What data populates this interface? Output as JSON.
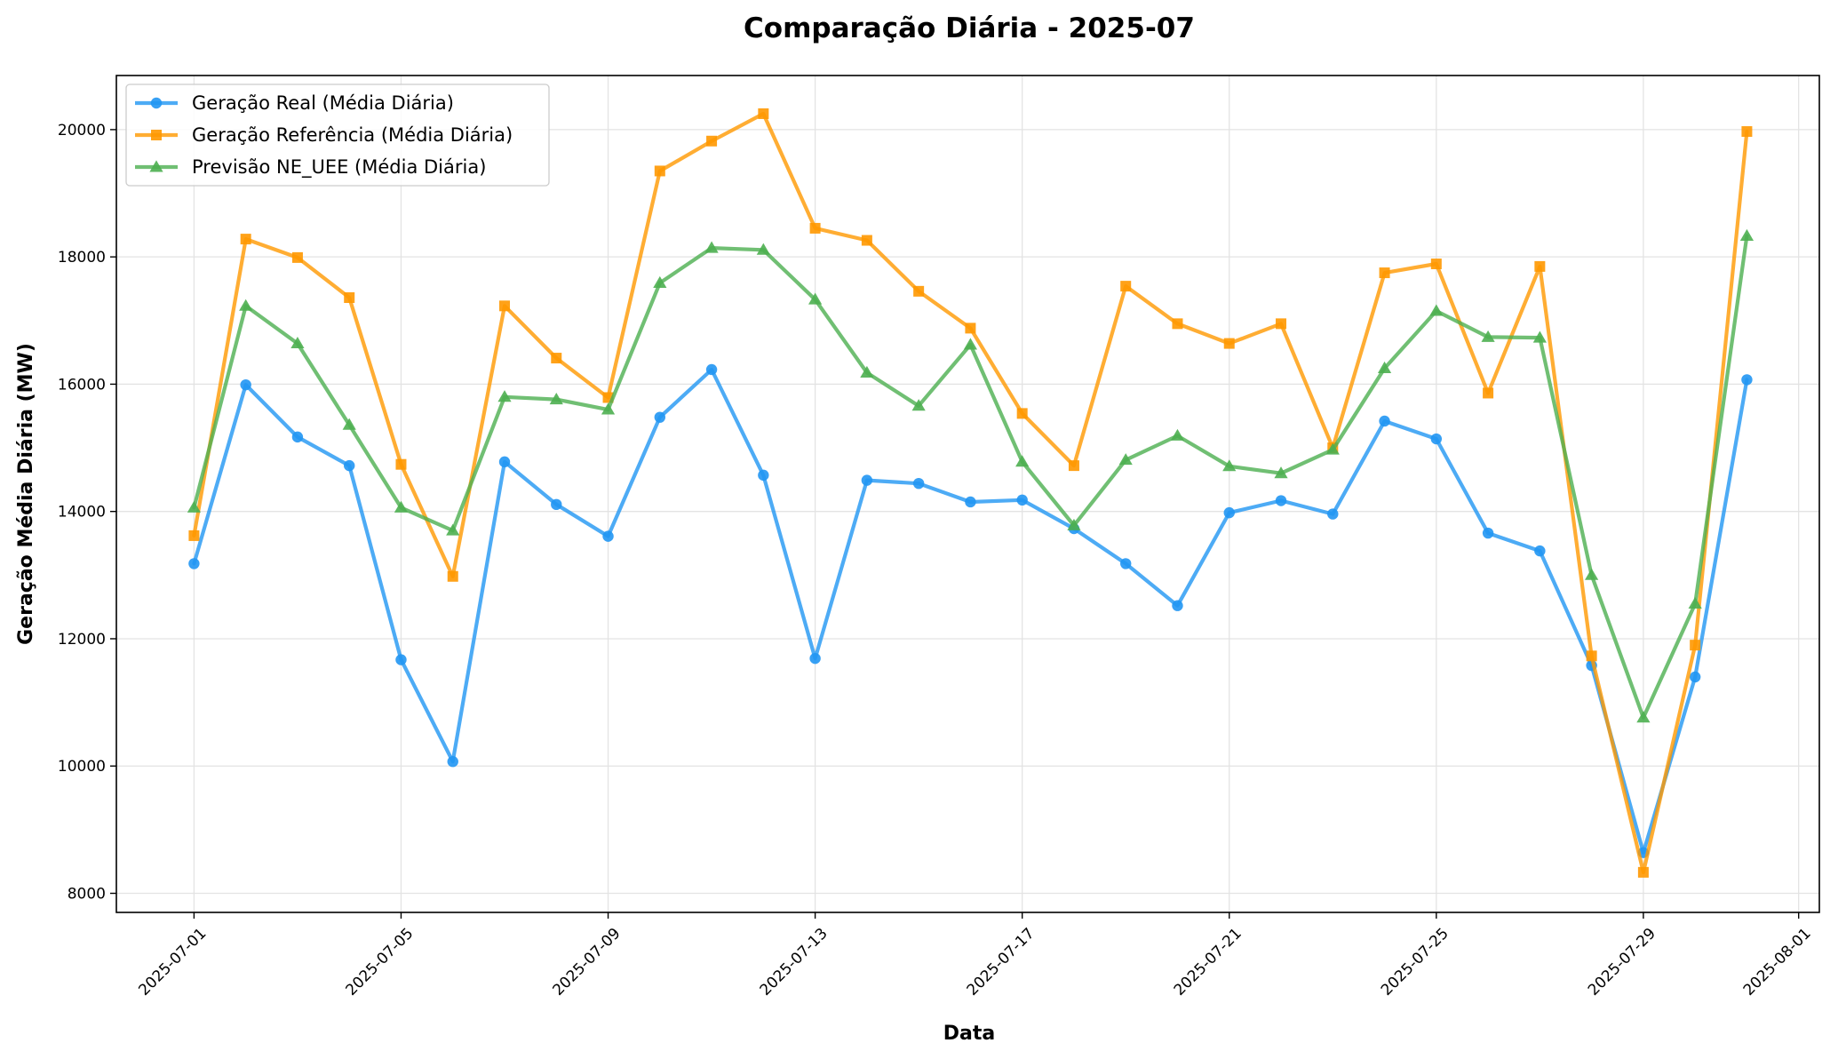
{
  "chart_data": {
    "type": "line",
    "title": "Comparação Diária - 2025-07",
    "xlabel": "Data",
    "ylabel": "Geração Média Diária (MW)",
    "xlim": [
      "2025-06-29.5",
      "2025-08-01.4"
    ],
    "ylim": [
      7700,
      20850
    ],
    "x_ticks": [
      "2025-07-01",
      "2025-07-05",
      "2025-07-09",
      "2025-07-13",
      "2025-07-17",
      "2025-07-21",
      "2025-07-25",
      "2025-07-29",
      "2025-08-01"
    ],
    "y_ticks": [
      8000,
      10000,
      12000,
      14000,
      16000,
      18000,
      20000
    ],
    "grid": true,
    "legend_position": "upper-left",
    "x": [
      "2025-07-01",
      "2025-07-02",
      "2025-07-03",
      "2025-07-04",
      "2025-07-05",
      "2025-07-06",
      "2025-07-07",
      "2025-07-08",
      "2025-07-09",
      "2025-07-10",
      "2025-07-11",
      "2025-07-12",
      "2025-07-13",
      "2025-07-14",
      "2025-07-15",
      "2025-07-16",
      "2025-07-17",
      "2025-07-18",
      "2025-07-19",
      "2025-07-20",
      "2025-07-21",
      "2025-07-22",
      "2025-07-23",
      "2025-07-24",
      "2025-07-25",
      "2025-07-26",
      "2025-07-27",
      "2025-07-28",
      "2025-07-29",
      "2025-07-30",
      "2025-07-31"
    ],
    "series": [
      {
        "name": "Geração Real (Média Diária)",
        "color": "#2196F3",
        "marker": "circle",
        "values": [
          13180,
          15990,
          15170,
          14720,
          11670,
          10070,
          14780,
          14110,
          13610,
          15480,
          16230,
          14570,
          11690,
          14490,
          14440,
          14150,
          14180,
          13730,
          13180,
          12520,
          13980,
          14170,
          13960,
          15420,
          15140,
          13660,
          13380,
          11580,
          8640,
          11400,
          16070
        ]
      },
      {
        "name": "Geração Referência (Média Diária)",
        "color": "#FF9800",
        "marker": "square",
        "values": [
          13620,
          18280,
          17990,
          17360,
          14740,
          12980,
          17230,
          16410,
          15790,
          19350,
          19820,
          20250,
          18450,
          18260,
          17460,
          16880,
          15540,
          14720,
          17540,
          16950,
          16640,
          16950,
          15000,
          17750,
          17890,
          15860,
          17850,
          11730,
          8330,
          11900,
          19970
        ]
      },
      {
        "name": "Previsão NE_UEE (Média Diária)",
        "color": "#4CAF50",
        "marker": "triangle",
        "values": [
          14060,
          17230,
          16640,
          15360,
          14060,
          13700,
          15800,
          15760,
          15600,
          17590,
          18140,
          18110,
          17330,
          16180,
          15660,
          16620,
          14780,
          13780,
          14810,
          15190,
          14710,
          14600,
          14970,
          16250,
          17150,
          16740,
          16730,
          13000,
          10760,
          12550,
          18330
        ]
      }
    ]
  }
}
